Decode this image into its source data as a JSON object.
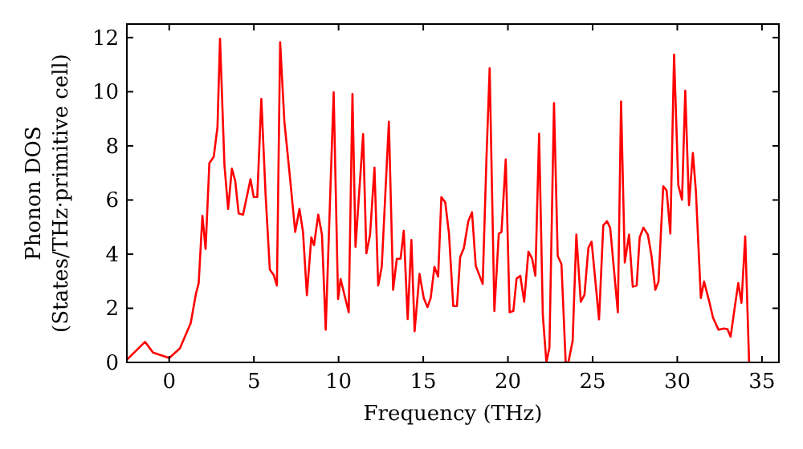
{
  "chart_data": {
    "type": "line",
    "xlabel": "Frequency (THz)",
    "ylabel": "Phonon DOS\n(States/THz·primitive cell)",
    "xlim": [
      -2.5,
      36
    ],
    "ylim": [
      0,
      12.5
    ],
    "xticks": [
      0,
      5,
      10,
      15,
      20,
      25,
      30,
      35
    ],
    "yticks": [
      0,
      2,
      4,
      6,
      8,
      10,
      12
    ],
    "grid": false,
    "marker": "none",
    "line_style": "solid",
    "series": [
      {
        "color": "#ff0000",
        "x": [
          -2.5,
          -2.4,
          -1.43,
          -0.95,
          0,
          0.63,
          1.27,
          1.58,
          1.74,
          1.96,
          2.15,
          2.37,
          2.63,
          2.85,
          3.0,
          3.26,
          3.48,
          3.7,
          3.9,
          4.1,
          4.36,
          4.8,
          4.99,
          5.2,
          5.44,
          5.69,
          5.94,
          6.17,
          6.36,
          6.55,
          6.8,
          7.12,
          7.44,
          7.69,
          7.9,
          8.13,
          8.39,
          8.55,
          8.8,
          9.02,
          9.24,
          9.71,
          9.97,
          10.12,
          10.6,
          10.82,
          11.0,
          11.45,
          11.64,
          11.86,
          12.12,
          12.34,
          12.55,
          12.97,
          13.22,
          13.44,
          13.66,
          13.85,
          14.08,
          14.3,
          14.49,
          14.78,
          15.03,
          15.25,
          15.44,
          15.66,
          15.88,
          16.07,
          16.3,
          16.52,
          16.77,
          16.99,
          17.18,
          17.4,
          17.66,
          17.88,
          18.1,
          18.51,
          18.73,
          18.92,
          19.2,
          19.46,
          19.62,
          19.87,
          20.1,
          20.32,
          20.51,
          20.73,
          20.96,
          21.21,
          21.43,
          21.62,
          21.84,
          22.06,
          22.27,
          22.45,
          22.72,
          22.94,
          23.16,
          23.41,
          23.57,
          23.82,
          24.04,
          24.3,
          24.52,
          24.75,
          24.94,
          25.38,
          25.63,
          25.85,
          26.04,
          26.49,
          26.68,
          26.9,
          27.15,
          27.37,
          27.6,
          27.78,
          28.0,
          28.26,
          28.48,
          28.7,
          28.89,
          29.17,
          29.37,
          29.59,
          29.81,
          30.06,
          30.28,
          30.47,
          30.69,
          30.92,
          31.1,
          31.39,
          31.58,
          31.89,
          32.11,
          32.43,
          32.74,
          32.96,
          33.15,
          33.38,
          33.6,
          33.79,
          34.01,
          34.24
        ],
        "values": [
          0.1,
          0.16,
          0.76,
          0.36,
          0.16,
          0.52,
          1.45,
          2.54,
          2.93,
          5.42,
          4.19,
          7.36,
          7.6,
          8.7,
          11.96,
          7.3,
          5.67,
          7.16,
          6.7,
          5.5,
          5.46,
          6.77,
          6.11,
          6.11,
          9.74,
          6.2,
          3.43,
          3.23,
          2.84,
          11.83,
          8.9,
          6.9,
          4.82,
          5.67,
          4.82,
          2.48,
          4.62,
          4.33,
          5.46,
          4.72,
          1.21,
          9.98,
          2.34,
          3.08,
          1.85,
          9.92,
          4.27,
          8.43,
          4.03,
          4.72,
          7.2,
          2.84,
          3.53,
          8.89,
          2.68,
          3.83,
          3.83,
          4.86,
          1.6,
          4.52,
          1.15,
          3.27,
          2.38,
          2.04,
          2.38,
          3.53,
          3.17,
          6.11,
          5.91,
          4.76,
          2.08,
          2.08,
          3.89,
          4.23,
          5.22,
          5.55,
          3.57,
          2.9,
          7.5,
          10.87,
          1.9,
          4.76,
          4.82,
          7.5,
          1.85,
          1.9,
          3.1,
          3.2,
          2.24,
          4.09,
          3.83,
          3.2,
          8.45,
          1.75,
          0,
          0.55,
          9.58,
          3.93,
          3.63,
          0,
          0,
          0.79,
          4.72,
          2.24,
          2.5,
          4.23,
          4.46,
          1.59,
          5.06,
          5.22,
          4.96,
          1.85,
          9.64,
          3.69,
          4.72,
          2.8,
          2.84,
          4.62,
          4.98,
          4.72,
          3.93,
          2.68,
          2.98,
          6.51,
          6.35,
          4.76,
          11.37,
          6.55,
          6.01,
          10.04,
          5.81,
          7.74,
          6.31,
          2.38,
          2.99,
          2.24,
          1.65,
          1.21,
          1.25,
          1.23,
          0.95,
          1.98,
          2.93,
          2.2,
          4.66,
          0
        ]
      }
    ]
  }
}
